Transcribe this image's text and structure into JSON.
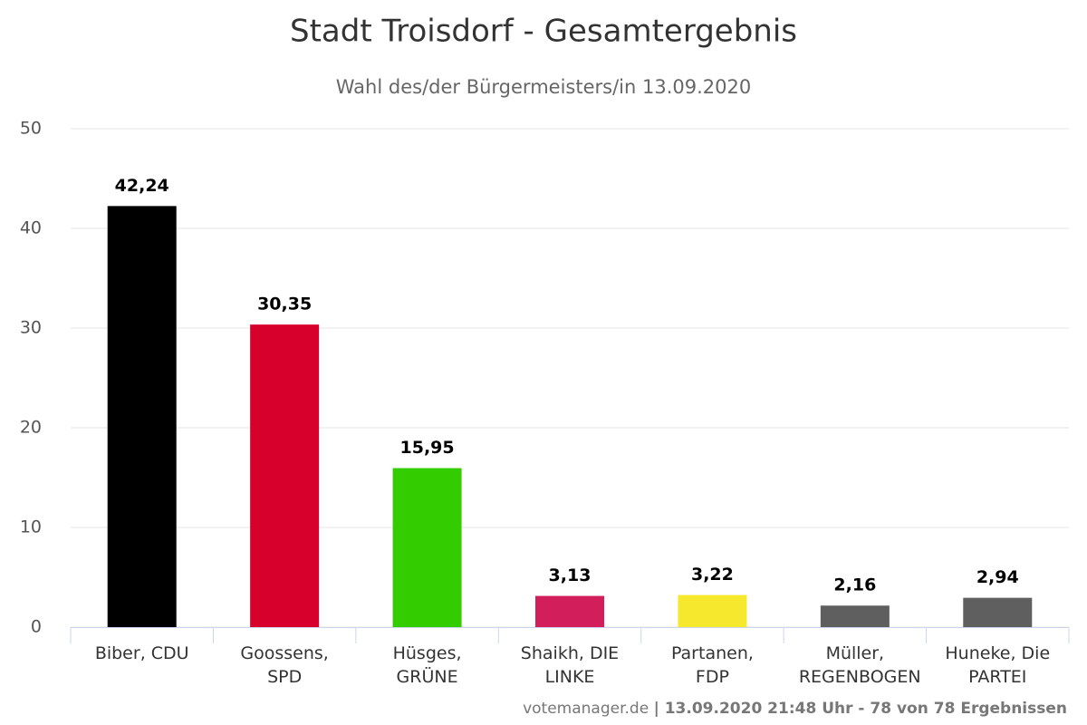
{
  "chart_data": {
    "type": "bar",
    "title": "Stadt Troisdorf - Gesamtergebnis",
    "subtitle": "Wahl des/der Bürgermeisters/in 13.09.2020",
    "categories": [
      "Biber, CDU",
      "Goossens, SPD",
      "Hüsges, GRÜNE",
      "Shaikh, DIE LINKE",
      "Partanen, FDP",
      "Müller, REGENBOGEN",
      "Huneke, Die PARTEI"
    ],
    "values": [
      42.24,
      30.35,
      15.95,
      3.13,
      3.22,
      2.16,
      2.94
    ],
    "value_labels": [
      "42,24",
      "30,35",
      "15,95",
      "3,13",
      "3,22",
      "2,16",
      "2,94"
    ],
    "colors": [
      "#000000",
      "#d7002c",
      "#33cc00",
      "#d21e5a",
      "#f5e82d",
      "#5f5f5f",
      "#5f5f5f"
    ],
    "ylim": [
      0,
      50
    ],
    "yticks": [
      0,
      10,
      20,
      30,
      40,
      50
    ],
    "grid": true,
    "credit_source": "votemanager.de",
    "credit_details": "| 13.09.2020 21:48 Uhr - 78 von 78 Ergebnissen"
  }
}
